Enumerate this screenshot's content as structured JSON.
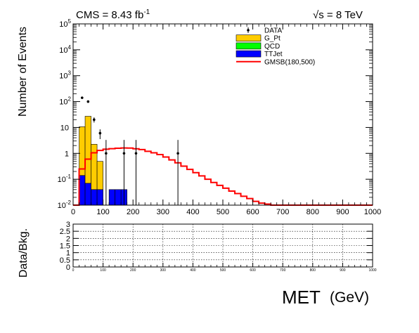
{
  "header": {
    "cms_label": "CMS = 8.43 fb",
    "cms_exp": "-1",
    "energy_sqrt": "√s",
    "energy_rest": " = 8 TeV"
  },
  "chart_data": [
    {
      "type": "histogram",
      "xlabel": "MET",
      "xunit": "(GeV)",
      "ylabel": "Number of Events",
      "xlim": [
        0,
        1000
      ],
      "ylim": [
        0.01,
        100000
      ],
      "yscale": "log",
      "xticks": [
        0,
        100,
        200,
        300,
        400,
        500,
        600,
        700,
        800,
        900,
        1000
      ],
      "yticks": [
        {
          "v": 0.01,
          "m": "10",
          "e": "-2"
        },
        {
          "v": 0.1,
          "m": "10",
          "e": "-1"
        },
        {
          "v": 1,
          "m": "1",
          "e": ""
        },
        {
          "v": 10,
          "m": "10",
          "e": ""
        },
        {
          "v": 100,
          "m": "10",
          "e": "2"
        },
        {
          "v": 1000,
          "m": "10",
          "e": "3"
        },
        {
          "v": 10000,
          "m": "10",
          "e": "4"
        },
        {
          "v": 100000,
          "m": "10",
          "e": "5"
        }
      ],
      "legend": {
        "placement": "top-right",
        "entries": [
          {
            "label": "DATA",
            "kind": "marker",
            "color": "#000000"
          },
          {
            "label": "G_Pt",
            "kind": "fill",
            "color": "#ffcc00"
          },
          {
            "label": "QCD",
            "kind": "fill",
            "color": "#00ff00"
          },
          {
            "label": "TTJet",
            "kind": "fill",
            "color": "#0000ff"
          },
          {
            "label": "GMSB(180,500)",
            "kind": "line",
            "color": "#ff0000"
          }
        ]
      },
      "stack": {
        "bin_width": 20,
        "bins": [
          {
            "x0": 20,
            "ttjet": 0.14,
            "gpt": 10.5
          },
          {
            "x0": 40,
            "ttjet": 0.07,
            "gpt": 27
          },
          {
            "x0": 60,
            "ttjet": 0.04,
            "gpt": 2.2
          },
          {
            "x0": 80,
            "ttjet": 0.04,
            "gpt": 0.45
          },
          {
            "x0": 100,
            "ttjet": 0,
            "gpt": 0
          },
          {
            "x0": 120,
            "ttjet": 0.04,
            "gpt": 0
          },
          {
            "x0": 140,
            "ttjet": 0.04,
            "gpt": 0
          },
          {
            "x0": 160,
            "ttjet": 0.04,
            "gpt": 0
          }
        ]
      },
      "data_points": [
        {
          "x": 30,
          "y": 140
        },
        {
          "x": 50,
          "y": 100
        },
        {
          "x": 70,
          "y": 20
        },
        {
          "x": 90,
          "y": 6
        },
        {
          "x": 110,
          "y": 1
        },
        {
          "x": 170,
          "y": 1
        },
        {
          "x": 210,
          "y": 1
        },
        {
          "x": 350,
          "y": 1
        }
      ],
      "signal": {
        "name": "GMSB(180,500)",
        "x0": 0,
        "bin_width": 20,
        "values": [
          0.01,
          0.25,
          0.6,
          1.05,
          1.3,
          1.45,
          1.52,
          1.58,
          1.62,
          1.6,
          1.5,
          1.4,
          1.2,
          1.05,
          0.9,
          0.72,
          0.56,
          0.43,
          0.32,
          0.24,
          0.18,
          0.135,
          0.1,
          0.075,
          0.058,
          0.045,
          0.035,
          0.028,
          0.022,
          0.018,
          0.014,
          0.012,
          0.011,
          0.01,
          0.01,
          0.01,
          0.01,
          0.01,
          0.01,
          0.01,
          0.01,
          0.01,
          0.01,
          0.01,
          0.01,
          0.01,
          0.01,
          0.01,
          0.01,
          0.01
        ]
      }
    },
    {
      "type": "ratio",
      "ylabel": "Data/Bkg.",
      "xlim": [
        0,
        1000
      ],
      "ylim": [
        0,
        3
      ],
      "grid": true,
      "xticks": [
        0,
        100,
        200,
        300,
        400,
        500,
        600,
        700,
        800,
        900,
        1000
      ],
      "yticks": [
        "0",
        "0.5",
        "1",
        "1.5",
        "2",
        "2.5",
        "3"
      ]
    }
  ]
}
